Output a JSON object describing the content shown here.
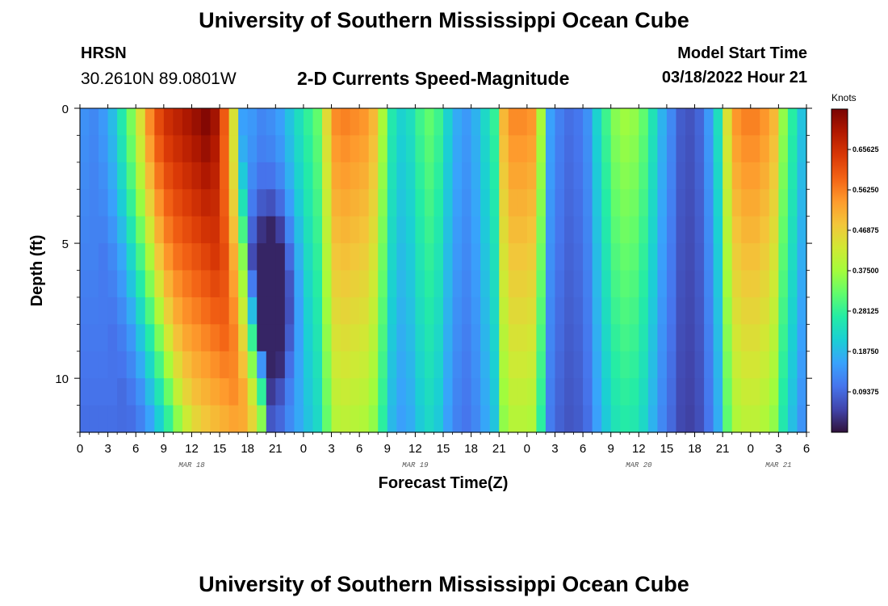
{
  "header": {
    "title": "University of Southern Mississippi Ocean Cube",
    "station": "HRSN",
    "coords": "30.2610N  89.0801W",
    "plot_title": "2-D Currents Speed-Magnitude",
    "model_start_label": "Model Start Time",
    "model_start_value": "03/18/2022 Hour 21"
  },
  "footer": {
    "title": "University of Southern Mississippi Ocean Cube"
  },
  "colors": {
    "stops": [
      "#30123b",
      "#4145ab",
      "#4675ed",
      "#39a2fc",
      "#1bcfd4",
      "#24eca6",
      "#61fc6c",
      "#a4fc3b",
      "#d1e834",
      "#f3c63a",
      "#fe9b2d",
      "#f36315",
      "#d93806",
      "#b11901",
      "#7a0403"
    ]
  },
  "chart_data": {
    "type": "heatmap",
    "title": "2-D Currents Speed-Magnitude",
    "xlabel": "Forecast Time(Z)",
    "ylabel": "Depth (ft)",
    "x_range_hours": [
      0,
      78
    ],
    "x_step_hours": 1,
    "x_tick_labels": [
      "0",
      "3",
      "6",
      "9",
      "12",
      "15",
      "18",
      "21",
      "0",
      "3",
      "6",
      "9",
      "12",
      "15",
      "18",
      "21",
      "0",
      "3",
      "6",
      "9",
      "12",
      "15",
      "18",
      "21",
      "0",
      "3",
      "6"
    ],
    "x_tick_hours": [
      0,
      3,
      6,
      9,
      12,
      15,
      18,
      21,
      24,
      27,
      30,
      33,
      36,
      39,
      42,
      45,
      48,
      51,
      54,
      57,
      60,
      63,
      66,
      69,
      72,
      75,
      78
    ],
    "date_labels": [
      {
        "text": "MAR 18",
        "hour": 12
      },
      {
        "text": "MAR 19",
        "hour": 36
      },
      {
        "text": "MAR 20",
        "hour": 60
      },
      {
        "text": "MAR 21",
        "hour": 75
      }
    ],
    "ylim": [
      0,
      12
    ],
    "y_ticks": [
      0,
      5,
      10
    ],
    "y_tick_labels": [
      "0",
      "5",
      "10"
    ],
    "colorbar": {
      "unit": "Knots",
      "range": [
        0,
        0.75
      ],
      "ticks": [
        0.09375,
        0.1875,
        0.28125,
        0.375,
        0.46875,
        0.5625,
        0.65625
      ],
      "tick_labels": [
        "0.09375",
        "0.18750",
        "0.28125",
        "0.37500",
        "0.46875",
        "0.56250",
        "0.65625"
      ]
    },
    "surface_speed": [
      0.14,
      0.13,
      0.15,
      0.19,
      0.26,
      0.34,
      0.44,
      0.55,
      0.62,
      0.66,
      0.68,
      0.7,
      0.72,
      0.74,
      0.71,
      0.6,
      0.44,
      0.16,
      0.15,
      0.13,
      0.14,
      0.16,
      0.2,
      0.24,
      0.28,
      0.32,
      0.45,
      0.55,
      0.56,
      0.55,
      0.54,
      0.5,
      0.38,
      0.26,
      0.22,
      0.24,
      0.29,
      0.32,
      0.29,
      0.22,
      0.17,
      0.15,
      0.18,
      0.23,
      0.28,
      0.5,
      0.55,
      0.55,
      0.54,
      0.38,
      0.16,
      0.12,
      0.1,
      0.11,
      0.14,
      0.22,
      0.29,
      0.35,
      0.37,
      0.36,
      0.32,
      0.25,
      0.18,
      0.13,
      0.08,
      0.07,
      0.09,
      0.15,
      0.24,
      0.44,
      0.54,
      0.56,
      0.56,
      0.54,
      0.5,
      0.36,
      0.27,
      0.2
    ],
    "depth_profile": "speed decreases with depth; high-speed jet at hours 6-16 slants toward later hours near the bottom; slowest band near hours 64-66"
  }
}
